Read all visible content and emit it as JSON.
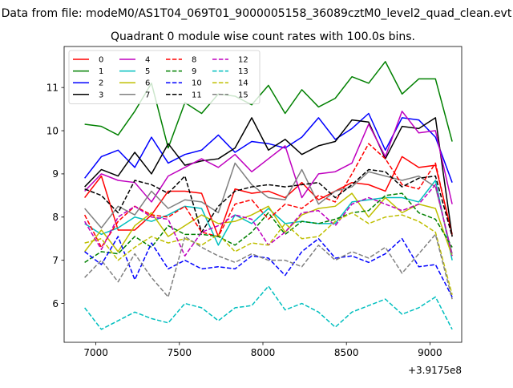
{
  "figure": {
    "suptitle": "Data from file: modeM0/AS1T04_069T01_9000005158_36089cztM0_level2_quad_clean.evt",
    "title": "Quadrant 0 module wise count rates with 100.0s bins.",
    "x_offset_label": "+3.9175e8"
  },
  "chart_data": {
    "type": "line",
    "title": "Quadrant 0 module wise count rates with 100.0s bins.",
    "xlabel": "",
    "ylabel": "",
    "x_offset": 391750000,
    "xlim": [
      6810,
      9190
    ],
    "ylim": [
      5.1,
      11.95
    ],
    "xticks": [
      7000,
      7500,
      8000,
      8500,
      9000
    ],
    "yticks": [
      6,
      7,
      8,
      9,
      10,
      11
    ],
    "grid": false,
    "legend": {
      "location": "upper-left",
      "columns": 4
    },
    "x": [
      6933,
      7033,
      7133,
      7233,
      7333,
      7433,
      7533,
      7633,
      7733,
      7833,
      7933,
      8033,
      8133,
      8233,
      8333,
      8433,
      8533,
      8633,
      8733,
      8833,
      8933,
      9033,
      9133
    ],
    "series": [
      {
        "name": "0",
        "color": "#ff0000",
        "style": "solid",
        "values": [
          8.45,
          8.95,
          7.7,
          7.7,
          8.05,
          8.6,
          8.6,
          8.55,
          7.55,
          8.65,
          8.55,
          8.6,
          8.45,
          8.8,
          8.4,
          8.6,
          8.8,
          8.75,
          8.6,
          9.4,
          9.15,
          9.2,
          7.6
        ]
      },
      {
        "name": "1",
        "color": "#008000",
        "style": "solid",
        "values": [
          10.15,
          10.1,
          9.9,
          10.45,
          11.1,
          9.6,
          10.65,
          10.4,
          10.85,
          10.8,
          10.6,
          11.05,
          10.4,
          10.95,
          10.55,
          10.75,
          11.25,
          11.1,
          11.6,
          10.85,
          11.2,
          11.2,
          9.75
        ]
      },
      {
        "name": "2",
        "color": "#0000ff",
        "style": "solid",
        "values": [
          8.9,
          9.4,
          9.55,
          9.15,
          9.85,
          9.25,
          9.45,
          9.55,
          9.9,
          9.5,
          9.75,
          9.7,
          9.6,
          9.85,
          10.3,
          9.8,
          10.05,
          10.4,
          9.55,
          10.3,
          10.25,
          9.85,
          8.8
        ]
      },
      {
        "name": "3",
        "color": "#000000",
        "style": "solid",
        "values": [
          8.7,
          9.1,
          8.95,
          9.5,
          9.0,
          9.7,
          9.2,
          9.3,
          9.35,
          9.6,
          10.3,
          9.55,
          9.8,
          9.45,
          9.65,
          9.75,
          10.25,
          10.2,
          9.35,
          10.1,
          10.05,
          10.3,
          7.55
        ]
      },
      {
        "name": "4",
        "color": "#bf00bf",
        "style": "solid",
        "values": [
          8.6,
          9.0,
          8.85,
          8.8,
          8.35,
          8.95,
          9.15,
          9.35,
          9.15,
          9.45,
          9.05,
          9.35,
          9.65,
          8.45,
          9.0,
          9.05,
          9.25,
          10.15,
          9.4,
          10.45,
          9.95,
          10.0,
          8.3
        ]
      },
      {
        "name": "5",
        "color": "#00bfbf",
        "style": "solid",
        "values": [
          7.85,
          7.6,
          7.75,
          8.0,
          7.9,
          8.05,
          8.25,
          8.2,
          7.35,
          8.05,
          7.85,
          8.2,
          7.85,
          7.9,
          7.85,
          7.85,
          8.35,
          8.4,
          8.45,
          8.45,
          8.35,
          8.85,
          7.0
        ]
      },
      {
        "name": "6",
        "color": "#bfbf00",
        "style": "solid",
        "values": [
          7.2,
          7.7,
          7.2,
          7.8,
          8.1,
          7.55,
          7.8,
          8.05,
          7.85,
          7.9,
          8.05,
          8.25,
          7.65,
          8.05,
          8.2,
          8.25,
          8.55,
          8.0,
          8.45,
          8.1,
          8.3,
          8.2,
          7.1
        ]
      },
      {
        "name": "7",
        "color": "#808080",
        "style": "solid",
        "values": [
          8.2,
          7.75,
          8.25,
          8.05,
          8.6,
          8.2,
          8.4,
          8.35,
          8.1,
          9.25,
          8.75,
          8.45,
          8.4,
          9.1,
          8.3,
          8.6,
          8.7,
          9.05,
          8.95,
          8.85,
          8.95,
          8.7,
          7.15
        ]
      },
      {
        "name": "8",
        "color": "#ff0000",
        "style": "dashed",
        "values": [
          8.05,
          7.3,
          7.9,
          8.25,
          8.05,
          8.0,
          8.25,
          7.65,
          7.55,
          8.3,
          8.4,
          7.95,
          8.3,
          8.2,
          8.5,
          8.35,
          9.0,
          9.7,
          9.35,
          8.75,
          8.65,
          9.25,
          7.55
        ]
      },
      {
        "name": "9",
        "color": "#008000",
        "style": "dashed",
        "values": [
          6.95,
          7.2,
          7.15,
          7.55,
          7.3,
          7.8,
          7.6,
          7.6,
          7.55,
          7.35,
          7.65,
          8.1,
          7.6,
          7.9,
          7.85,
          7.95,
          8.1,
          8.15,
          8.5,
          8.55,
          8.1,
          7.95,
          7.3
        ]
      },
      {
        "name": "10",
        "color": "#0000ff",
        "style": "dashed",
        "values": [
          7.2,
          6.9,
          7.55,
          6.55,
          7.4,
          6.8,
          7.0,
          6.8,
          6.85,
          6.8,
          7.1,
          7.05,
          6.65,
          7.2,
          7.5,
          7.05,
          7.1,
          6.95,
          7.15,
          7.5,
          6.85,
          6.9,
          6.15
        ]
      },
      {
        "name": "11",
        "color": "#000000",
        "style": "dashed",
        "values": [
          8.65,
          8.5,
          8.1,
          8.85,
          8.75,
          8.55,
          8.95,
          7.65,
          8.25,
          8.6,
          8.7,
          8.75,
          8.7,
          8.75,
          8.8,
          8.45,
          8.75,
          9.1,
          9.05,
          8.7,
          8.9,
          8.95,
          7.55
        ]
      },
      {
        "name": "12",
        "color": "#bf00bf",
        "style": "dashed",
        "values": [
          7.9,
          7.25,
          8.0,
          8.25,
          8.0,
          7.95,
          7.1,
          7.65,
          7.8,
          8.05,
          7.95,
          7.35,
          7.65,
          8.1,
          8.15,
          7.8,
          8.3,
          8.45,
          8.3,
          8.15,
          8.3,
          8.75,
          7.1
        ]
      },
      {
        "name": "13",
        "color": "#00bfbf",
        "style": "dashed",
        "values": [
          5.9,
          5.4,
          5.6,
          5.8,
          5.65,
          5.55,
          6.0,
          5.9,
          5.6,
          5.9,
          5.95,
          6.4,
          5.85,
          6.0,
          5.8,
          5.45,
          5.8,
          5.95,
          6.1,
          5.75,
          5.9,
          6.15,
          5.4
        ]
      },
      {
        "name": "14",
        "color": "#bfbf00",
        "style": "dashed",
        "values": [
          7.4,
          7.5,
          7.0,
          7.3,
          7.55,
          7.4,
          7.5,
          7.35,
          7.6,
          7.2,
          7.4,
          7.35,
          7.85,
          7.5,
          7.55,
          7.9,
          8.1,
          7.85,
          8.0,
          8.05,
          7.9,
          7.65,
          6.2
        ]
      },
      {
        "name": "15",
        "color": "#808080",
        "style": "dashed",
        "values": [
          6.6,
          7.0,
          6.5,
          7.15,
          6.6,
          6.15,
          7.55,
          7.3,
          7.1,
          6.95,
          7.15,
          7.0,
          7.0,
          6.85,
          7.35,
          7.0,
          7.2,
          7.05,
          7.3,
          6.7,
          7.15,
          7.6,
          6.1
        ]
      }
    ]
  }
}
